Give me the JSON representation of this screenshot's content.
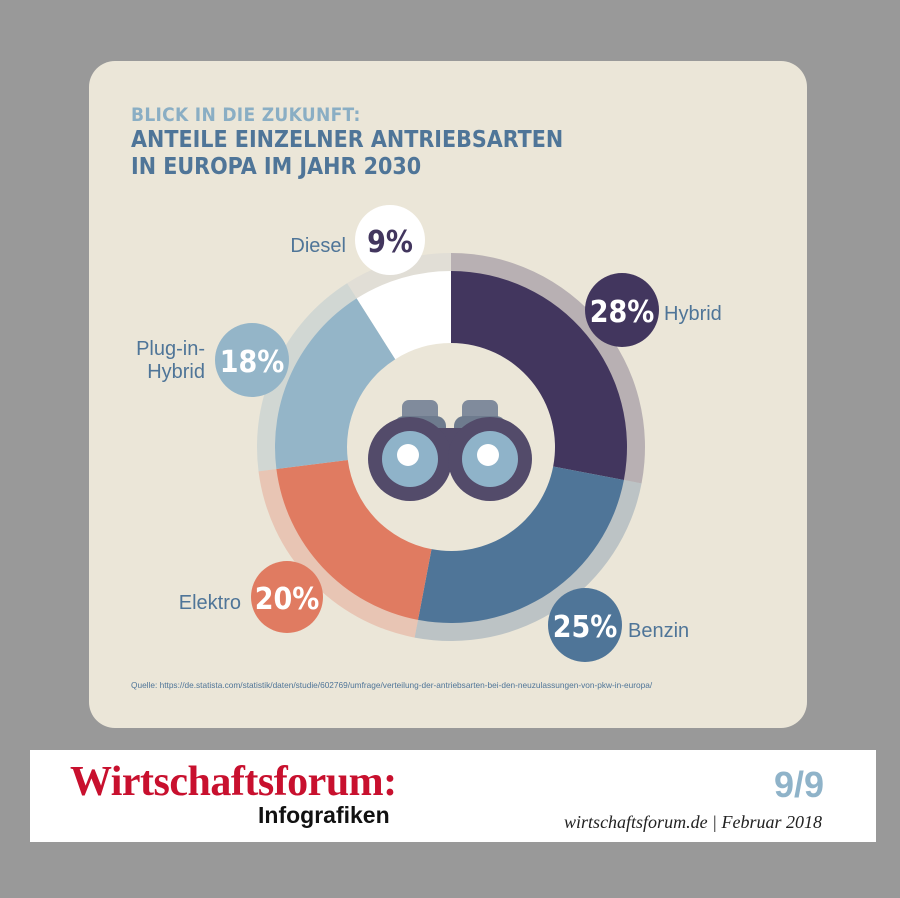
{
  "colors": {
    "background": "#999999",
    "card": "#ebe6d8",
    "title": "#4f7598",
    "kicker": "#8aaec4",
    "label": "#4f7598",
    "brand": "#c8102e",
    "page_number": "#8fb3c9"
  },
  "chart_data": {
    "type": "donut",
    "kicker": "Blick in die Zukunft:",
    "title_lines": [
      "Anteile einzelner Antriebsarten",
      "in Europa im Jahr 2030"
    ],
    "center_icon": "binoculars-icon",
    "unit": "%",
    "slices": [
      {
        "label": "Hybrid",
        "value": 28,
        "value_label": "28%",
        "color": "#42365e",
        "value_text_color": "#ffffff"
      },
      {
        "label": "Benzin",
        "value": 25,
        "value_label": "25%",
        "color": "#4f7598",
        "value_text_color": "#ffffff"
      },
      {
        "label": "Elektro",
        "value": 20,
        "value_label": "20%",
        "color": "#e07b61",
        "value_text_color": "#ffffff"
      },
      {
        "label": "Plug-in-Hybrid",
        "label_lines": [
          "Plug-in-",
          "Hybrid"
        ],
        "value": 18,
        "value_label": "18%",
        "color": "#94b5c8",
        "value_text_color": "#ffffff"
      },
      {
        "label": "Diesel",
        "value": 9,
        "value_label": "9%",
        "color": "#ffffff",
        "value_text_color": "#42365e"
      }
    ]
  },
  "source_text": "Quelle: https://de.statista.com/statistik/daten/studie/602769/umfrage/verteilung-der-antriebsarten-bei-den-neuzulassungen-von-pkw-in-europa/",
  "footer": {
    "brand": "Wirtschaftsforum:",
    "subtitle": "Infografiken",
    "page_number": "9/9",
    "publication": "wirtschaftsforum.de | Februar 2018"
  }
}
